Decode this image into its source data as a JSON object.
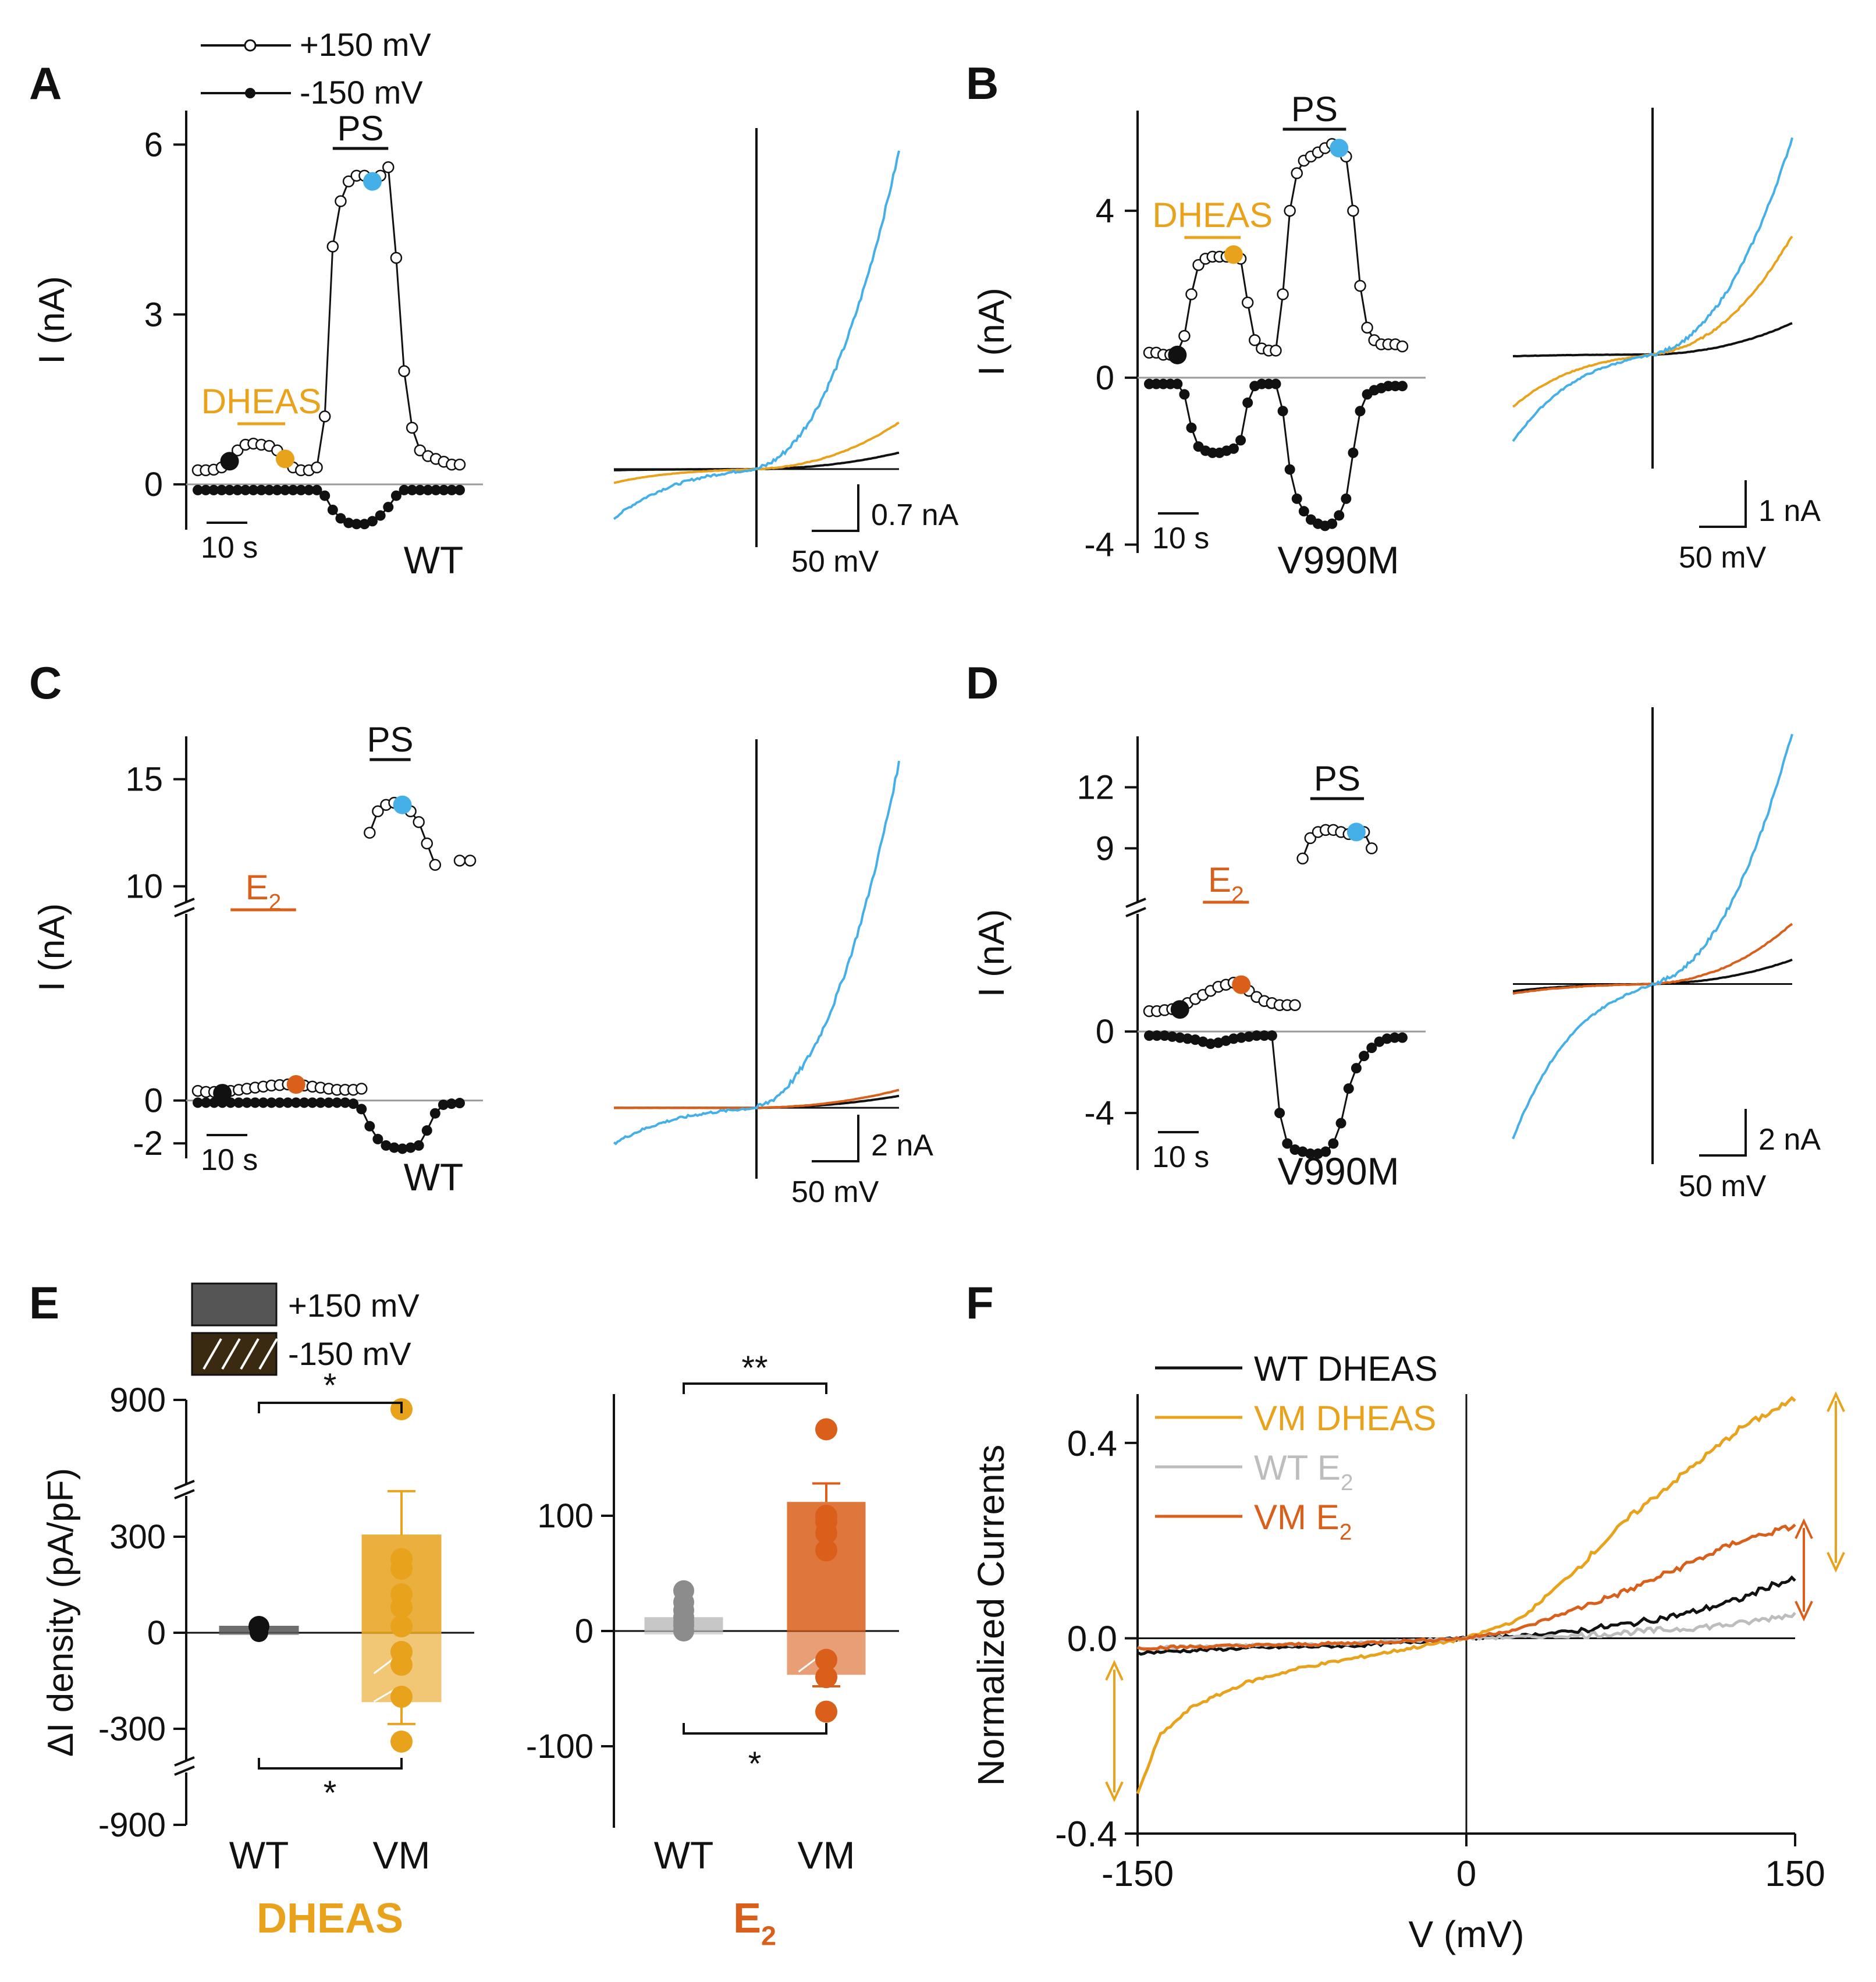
{
  "legend_top": {
    "plus_label": "+150 mV",
    "minus_label": "-150 mV"
  },
  "colors": {
    "dheas": "#E8A21C",
    "e2": "#D95F1A",
    "ps": "#45AFE8",
    "black": "#111111",
    "wt_gray": "#BDBDBD",
    "wt_bar": "#555555",
    "wt_gray_dot": "#8C8C8C"
  },
  "panels": {
    "A": {
      "letter": "A",
      "ylabel": "I (nA)",
      "yticks": [
        "6",
        "3",
        "0"
      ],
      "yvals": [
        6,
        3,
        0
      ],
      "yrange": [
        -0.8,
        6.6
      ],
      "agent_label": "DHEAS",
      "ps_label": "PS",
      "time_scale": "10 s",
      "genotype": "WT",
      "iv_scale_i": "0.7 nA",
      "iv_scale_v": "50 mV",
      "time_course": {
        "plus_150": [
          0.25,
          0.25,
          0.26,
          0.3,
          0.45,
          0.6,
          0.7,
          0.72,
          0.7,
          0.68,
          0.6,
          0.45,
          0.3,
          0.25,
          0.25,
          0.3,
          1.2,
          4.2,
          5.0,
          5.35,
          5.45,
          5.45,
          5.35,
          5.45,
          5.6,
          4.0,
          2.0,
          1.0,
          0.6,
          0.5,
          0.45,
          0.4,
          0.35,
          0.35
        ],
        "minus_150": [
          -0.1,
          -0.1,
          -0.1,
          -0.1,
          -0.1,
          -0.1,
          -0.1,
          -0.1,
          -0.1,
          -0.1,
          -0.1,
          -0.1,
          -0.1,
          -0.1,
          -0.1,
          -0.1,
          -0.2,
          -0.45,
          -0.6,
          -0.68,
          -0.7,
          -0.7,
          -0.65,
          -0.55,
          -0.4,
          -0.2,
          -0.1,
          -0.1,
          -0.1,
          -0.1,
          -0.1,
          -0.1,
          -0.1,
          -0.1
        ],
        "agent_bar": [
          5,
          11
        ],
        "ps_bar": [
          17,
          24
        ],
        "baseline_marker": 4,
        "agent_marker": 11,
        "ps_marker": 22
      },
      "iv": {
        "yrange": [
          -1.0,
          5.8
        ],
        "black": [
          -0.02,
          0.3
        ],
        "agent": [
          -0.25,
          0.85
        ],
        "ps": [
          -0.9,
          5.8
        ]
      }
    },
    "B": {
      "letter": "B",
      "ylabel": "I (nA)",
      "yticks": [
        "4",
        "0",
        "-4"
      ],
      "yvals": [
        4,
        0,
        -4
      ],
      "yrange": [
        -4.2,
        6.4
      ],
      "agent_label": "DHEAS",
      "ps_label": "PS",
      "time_scale": "10 s",
      "genotype": "V990M",
      "iv_scale_i": "1 nA",
      "iv_scale_v": "50 mV",
      "time_course": {
        "plus_150": [
          0.6,
          0.6,
          0.55,
          0.55,
          0.6,
          1.0,
          2.0,
          2.7,
          2.85,
          2.9,
          2.9,
          2.9,
          2.95,
          2.85,
          1.8,
          0.9,
          0.7,
          0.65,
          0.65,
          2.0,
          4.0,
          4.9,
          5.2,
          5.3,
          5.4,
          5.5,
          5.6,
          5.5,
          5.3,
          4.0,
          2.2,
          1.2,
          0.9,
          0.8,
          0.8,
          0.8,
          0.75
        ],
        "minus_150": [
          -0.15,
          -0.15,
          -0.15,
          -0.15,
          -0.15,
          -0.4,
          -1.2,
          -1.65,
          -1.75,
          -1.8,
          -1.8,
          -1.75,
          -1.7,
          -1.5,
          -0.6,
          -0.2,
          -0.15,
          -0.15,
          -0.15,
          -0.8,
          -2.2,
          -2.9,
          -3.2,
          -3.4,
          -3.5,
          -3.55,
          -3.5,
          -3.3,
          -2.9,
          -1.8,
          -0.8,
          -0.4,
          -0.3,
          -0.25,
          -0.2,
          -0.2,
          -0.2
        ],
        "agent_bar": [
          5,
          13
        ],
        "ps_bar": [
          19,
          28
        ],
        "baseline_marker": 4,
        "agent_marker": 12,
        "ps_marker": 27
      },
      "iv": {
        "yrange": [
          -2.6,
          6.4
        ],
        "black": [
          -0.05,
          0.9
        ],
        "agent": [
          -1.5,
          3.4
        ],
        "ps": [
          -2.5,
          6.2
        ]
      }
    },
    "C": {
      "letter": "C",
      "ylabel": "I (nA)",
      "yticks": [
        "15",
        "10",
        "0",
        "-2"
      ],
      "yvals": [
        15,
        10,
        0,
        -2
      ],
      "yrange": [
        -2.7,
        17.0
      ],
      "agent_label": "E2",
      "ps_label": "PS",
      "time_scale": "10 s",
      "genotype": "WT",
      "iv_scale_i": "2 nA",
      "iv_scale_v": "50 mV",
      "time_course": {
        "plus_150": [
          0.45,
          0.4,
          0.4,
          0.45,
          0.45,
          0.5,
          0.55,
          0.6,
          0.65,
          0.7,
          0.72,
          0.75,
          0.75,
          0.7,
          0.65,
          0.6,
          0.55,
          0.5,
          0.5,
          0.5,
          0.55,
          12.5,
          13.5,
          13.8,
          13.9,
          13.8,
          13.5,
          13.0,
          12.0,
          11.0
        ],
        "minus_150": [
          -0.1,
          -0.1,
          -0.1,
          -0.1,
          -0.1,
          -0.1,
          -0.1,
          -0.1,
          -0.1,
          -0.1,
          -0.1,
          -0.1,
          -0.1,
          -0.1,
          -0.1,
          -0.1,
          -0.1,
          -0.1,
          -0.1,
          -0.15,
          -0.4,
          -1.2,
          -1.8,
          -2.1,
          -2.2,
          -2.25,
          -2.2,
          -2.1,
          -1.4,
          -0.6,
          -0.2,
          -0.15,
          -0.12
        ],
        "agent_bar": [
          4,
          12
        ],
        "ps_bar": [
          21,
          26
        ],
        "baseline_marker": 3,
        "agent_marker": 12,
        "ps_marker": 25
      },
      "iv": {
        "yrange": [
          -2.0,
          14.5
        ],
        "black": [
          0.0,
          0.5
        ],
        "agent": [
          0.0,
          0.75
        ],
        "ps": [
          -1.5,
          14.5
        ]
      }
    },
    "D": {
      "letter": "D",
      "ylabel": "I (nA)",
      "yticks": [
        "12",
        "9",
        "0",
        "-4"
      ],
      "yvals": [
        12,
        9,
        0,
        -4
      ],
      "yrange": [
        -6.8,
        14.5
      ],
      "agent_label": "E2",
      "ps_label": "PS",
      "time_scale": "10 s",
      "genotype": "V990M",
      "iv_scale_i": "2 nA",
      "iv_scale_v": "50 mV",
      "time_course": {
        "plus_150": [
          1.0,
          1.0,
          1.05,
          1.1,
          1.2,
          1.4,
          1.6,
          1.8,
          2.0,
          2.2,
          2.3,
          2.4,
          2.3,
          2.0,
          1.7,
          1.5,
          1.4,
          1.3,
          1.3,
          1.3,
          8.5,
          9.5,
          9.8,
          9.9,
          9.9,
          9.8,
          9.7,
          9.8,
          9.8,
          9.0
        ],
        "minus_150": [
          -0.2,
          -0.2,
          -0.2,
          -0.25,
          -0.3,
          -0.35,
          -0.4,
          -0.5,
          -0.6,
          -0.55,
          -0.45,
          -0.35,
          -0.3,
          -0.25,
          -0.2,
          -0.2,
          -0.2,
          -4.0,
          -5.5,
          -5.8,
          -5.9,
          -6.0,
          -6.0,
          -5.9,
          -5.5,
          -4.5,
          -2.8,
          -1.8,
          -1.2,
          -0.8,
          -0.5,
          -0.35,
          -0.3,
          -0.3
        ],
        "agent_bar": [
          7,
          13
        ],
        "ps_bar": [
          21,
          28
        ],
        "baseline_marker": 4,
        "agent_marker": 12,
        "ps_marker": 27
      },
      "iv": {
        "yrange": [
          -6.5,
          10.5
        ],
        "black": [
          -0.3,
          1.0
        ],
        "agent": [
          -0.4,
          2.5
        ],
        "ps": [
          -6.4,
          10.4
        ]
      }
    }
  },
  "panel_E": {
    "letter": "E",
    "legend": {
      "plus_label": "+150 mV",
      "minus_label": "-150 mV"
    },
    "ylabel": "ΔI density (pA/pF)",
    "left_yticks": [
      "900",
      "300",
      "0",
      "-300",
      "-900"
    ],
    "right_yticks": [
      "100",
      "0",
      "-100"
    ],
    "groups": [
      "WT",
      "VM"
    ],
    "dheas_label": "DHEAS",
    "e2_label": "E2",
    "sig_top_dheas": "*",
    "sig_bottom_dheas": "*",
    "sig_top_e2": "**",
    "sig_bottom_e2": "*",
    "bars": {
      "dheas_wt": {
        "plus": 20,
        "minus": -5
      },
      "dheas_vm": {
        "plus": 305,
        "minus": -215,
        "err_plus": 410,
        "err_minus": -285,
        "points": [
          850,
          230,
          200,
          120,
          80,
          20,
          -60,
          -100,
          -200,
          -380
        ]
      },
      "e2_wt": {
        "plus": 12,
        "minus": -3,
        "points": [
          35,
          25,
          18,
          12,
          8,
          5,
          0
        ]
      },
      "e2_vm": {
        "plus": 112,
        "minus": -38,
        "err_plus": 128,
        "err_minus": -48,
        "points": [
          175,
          100,
          95,
          85,
          70,
          -25,
          -40,
          -70
        ]
      }
    }
  },
  "panel_F": {
    "letter": "F",
    "ylabel": "Normalized Currents",
    "xlabel": "V (mV)",
    "xticks": [
      "-150",
      "0",
      "150"
    ],
    "yticks": [
      "0.4",
      "0.0",
      "-0.4"
    ],
    "legend": [
      "WT DHEAS",
      "VM DHEAS",
      "WT E2",
      "VM E2"
    ]
  },
  "chart_data": [
    {
      "type": "line",
      "title": "F",
      "xlabel": "V (mV)",
      "ylabel": "Normalized Currents",
      "xlim": [
        -150,
        150
      ],
      "ylim": [
        -0.4,
        0.5
      ],
      "series": [
        {
          "name": "WT DHEAS",
          "x": [
            -150,
            -100,
            -50,
            0,
            25,
            50,
            75,
            100,
            125,
            140,
            150
          ],
          "values": [
            -0.03,
            -0.02,
            -0.015,
            0.0,
            0.005,
            0.015,
            0.03,
            0.05,
            0.08,
            0.11,
            0.12
          ]
        },
        {
          "name": "VM DHEAS",
          "x": [
            -150,
            -140,
            -125,
            -100,
            -75,
            -50,
            -25,
            0,
            25,
            50,
            75,
            100,
            125,
            150
          ],
          "values": [
            -0.32,
            -0.2,
            -0.14,
            -0.09,
            -0.06,
            -0.04,
            -0.02,
            0.0,
            0.04,
            0.14,
            0.25,
            0.34,
            0.43,
            0.49
          ]
        },
        {
          "name": "WT E2",
          "x": [
            -150,
            -100,
            -50,
            0,
            50,
            100,
            125,
            150
          ],
          "values": [
            -0.02,
            -0.015,
            -0.01,
            0.0,
            0.005,
            0.02,
            0.03,
            0.05
          ]
        },
        {
          "name": "VM E2",
          "x": [
            -150,
            -100,
            -50,
            0,
            25,
            50,
            75,
            100,
            125,
            150
          ],
          "values": [
            -0.02,
            -0.015,
            -0.01,
            0.0,
            0.02,
            0.06,
            0.1,
            0.15,
            0.2,
            0.23
          ]
        }
      ]
    }
  ]
}
